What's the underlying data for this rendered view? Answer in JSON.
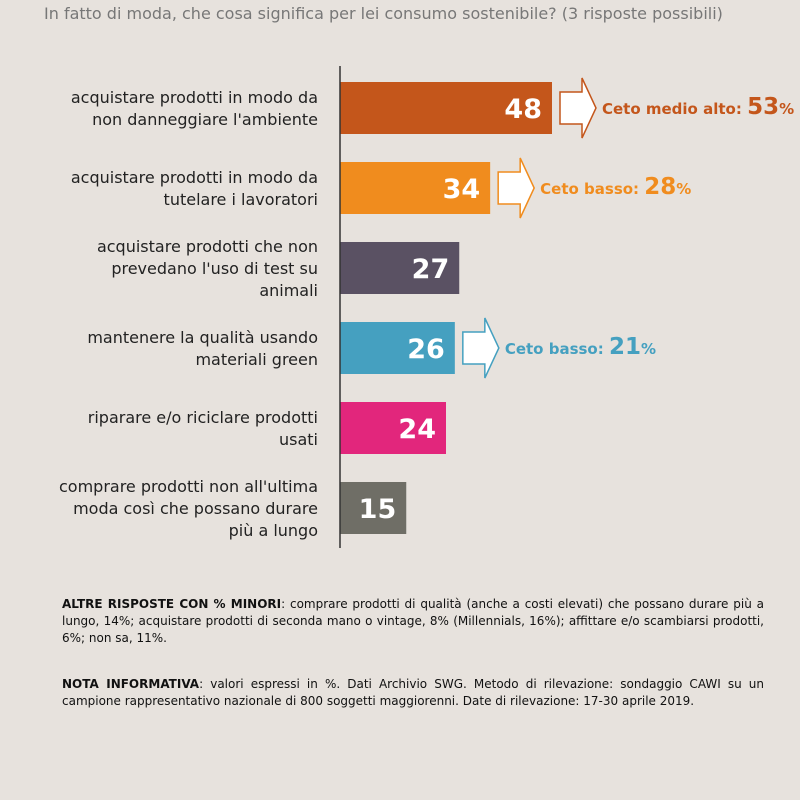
{
  "question": "In fatto di moda, che cosa significa per lei consumo sostenibile? (3 risposte possibili)",
  "chart_data": {
    "type": "bar",
    "orientation": "horizontal",
    "categories": [
      [
        "acquistare prodotti in modo da",
        "non danneggiare l'ambiente"
      ],
      [
        "acquistare prodotti in modo da",
        "tutelare i lavoratori"
      ],
      [
        "acquistare prodotti che non",
        "prevedano l'uso di test su",
        "animali"
      ],
      [
        "mantenere la qualità usando",
        "materiali green"
      ],
      [
        "riparare e/o riciclare prodotti",
        "usati"
      ],
      [
        "comprare prodotti non all'ultima",
        "moda così che possano durare",
        "più a lungo"
      ]
    ],
    "values": [
      48,
      34,
      27,
      26,
      24,
      15
    ],
    "colors": [
      "#c4561b",
      "#f08c1e",
      "#5a5163",
      "#45a0c0",
      "#e2267c",
      "#6f6e66"
    ],
    "xlim": [
      0,
      48
    ],
    "callouts": [
      {
        "index": 0,
        "label": "Ceto medio alto:",
        "value": "53",
        "unit": "%",
        "color": "#c4561b"
      },
      {
        "index": 1,
        "label": "Ceto basso:",
        "value": "28",
        "unit": "%",
        "color": "#f08c1e"
      },
      {
        "index": 3,
        "label": "Ceto basso:",
        "value": "21",
        "unit": "%",
        "color": "#45a0c0"
      }
    ]
  },
  "notes": {
    "other_title": "ALTRE RISPOSTE CON % MINORI",
    "other_text": ": comprare prodotti di qualità (anche a costi elevati) che possano durare più a lungo, 14%; acquistare prodotti di seconda mano o vintage, 8% (Millennials, 16%); affittare e/o scambiarsi prodotti, 6%;  non sa, 11%.",
    "info_title": "NOTA INFORMATIVA",
    "info_text": ": valori espressi in %. Dati Archivio SWG. Metodo di rilevazione: sondaggio CAWI su un campione rappresentativo nazionale di 800 soggetti maggiorenni. Date di rilevazione: 17-30 aprile 2019."
  }
}
